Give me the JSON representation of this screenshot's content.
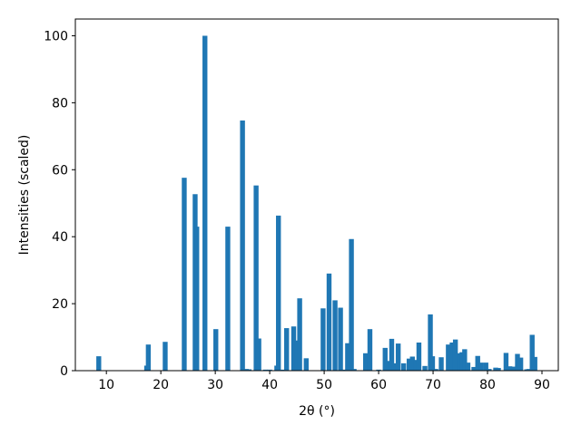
{
  "chart_data": {
    "type": "bar",
    "x_label": "2θ (°)",
    "y_label": "Intensities (scaled)",
    "color": "#1f77b4",
    "x": [
      8.6,
      17.4,
      17.7,
      20.8,
      24.3,
      26.3,
      26.6,
      28.1,
      30.1,
      32.3,
      35.0,
      35.7,
      36.2,
      37.5,
      38.0,
      39.2,
      40.0,
      41.3,
      41.6,
      42.5,
      43.1,
      44.4,
      45.0,
      45.5,
      46.7,
      49.8,
      50.9,
      52.0,
      53.0,
      53.6,
      54.3,
      55.0,
      55.5,
      57.6,
      58.4,
      60.0,
      61.2,
      62.0,
      62.4,
      62.9,
      63.6,
      64.6,
      65.6,
      66.2,
      66.9,
      67.4,
      68.5,
      69.5,
      69.9,
      70.5,
      71.5,
      72.8,
      73.5,
      74.1,
      74.8,
      75.3,
      75.8,
      76.4,
      77.5,
      78.2,
      78.8,
      79.7,
      80.3,
      81.5,
      82.0,
      83.4,
      84.1,
      84.8,
      85.5,
      86.1,
      87.2,
      87.6,
      88.2,
      88.7
    ],
    "values": [
      4.3,
      1.5,
      7.8,
      8.6,
      57.6,
      52.7,
      43,
      100,
      12.4,
      43,
      74.7,
      0.5,
      0.4,
      55.3,
      9.6,
      0.3,
      0.3,
      1.5,
      46.3,
      0.3,
      12.7,
      13.2,
      9.0,
      21.6,
      3.7,
      18.6,
      29,
      21,
      18.8,
      0.3,
      8.2,
      39.3,
      0.5,
      5.2,
      12.4,
      0.3,
      6.8,
      2.9,
      9.5,
      2.2,
      8.1,
      2.2,
      3.6,
      4.2,
      3.2,
      8.4,
      1.4,
      16.8,
      4.3,
      0.5,
      4.0,
      7.8,
      8.4,
      9.3,
      5.2,
      5.5,
      6.4,
      2.4,
      1.1,
      4.4,
      2.4,
      2.4,
      0.5,
      0.9,
      0.8,
      5.3,
      1.3,
      1.2,
      5.0,
      3.9,
      0.4,
      0.5,
      10.7,
      4.1
    ],
    "xlim": [
      4.3,
      93.0
    ],
    "ylim": [
      0,
      105
    ],
    "xticks": [
      10,
      20,
      30,
      40,
      50,
      60,
      70,
      80,
      90
    ],
    "yticks": [
      0,
      20,
      40,
      60,
      80,
      100
    ]
  }
}
